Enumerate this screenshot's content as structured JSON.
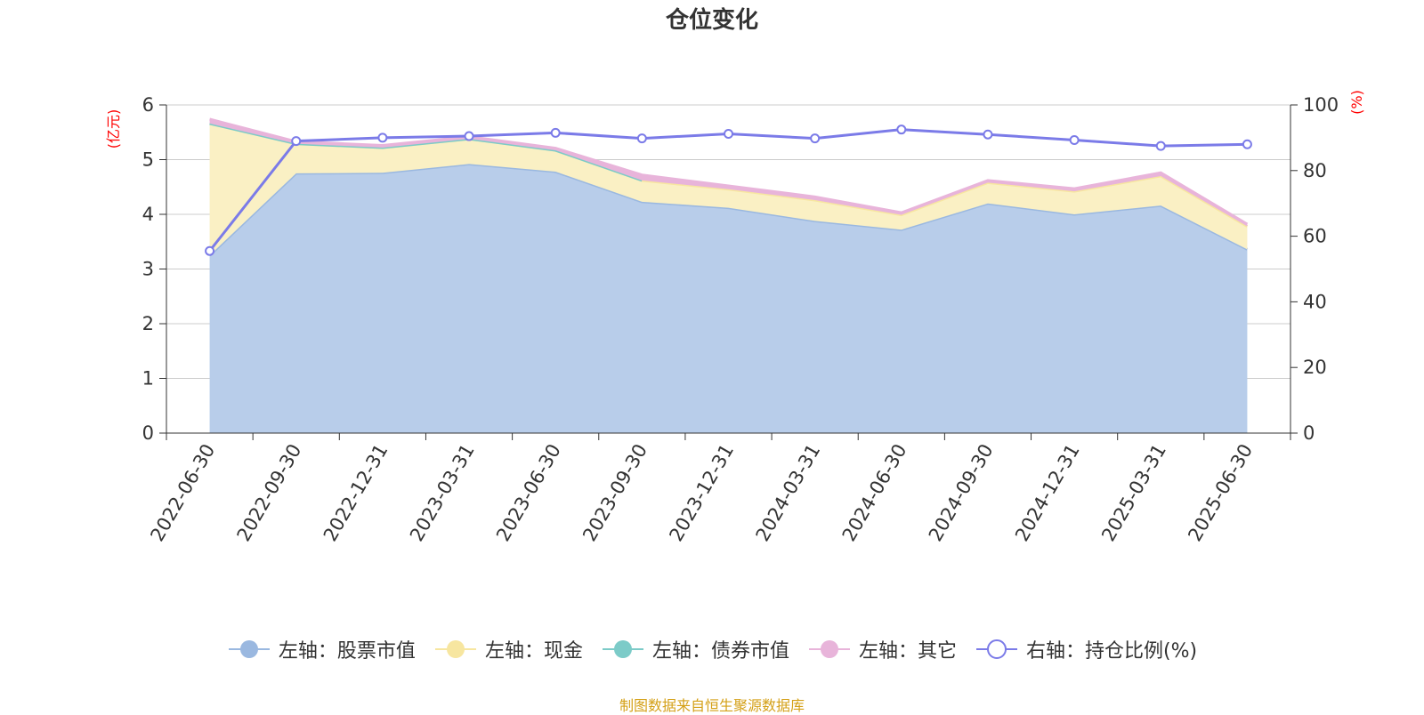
{
  "title": "仓位变化",
  "source_note": "制图数据来自恒生聚源数据库",
  "colors": {
    "stock": "#9ab8e0",
    "stock_fill": "#b8cdea",
    "cash": "#f7e6a0",
    "cash_fill": "#faf0c4",
    "bond": "#7ccbc8",
    "other": "#e8b4da",
    "ratio": "#7b7be8",
    "grid": "#cccccc",
    "unit": "#ff0000"
  },
  "chart_data": {
    "type": "area",
    "title": "仓位变化",
    "categories": [
      "2022-06-30",
      "2022-09-30",
      "2022-12-31",
      "2023-03-31",
      "2023-06-30",
      "2023-09-30",
      "2023-12-31",
      "2024-03-31",
      "2024-06-30",
      "2024-09-30",
      "2024-12-31",
      "2025-03-31",
      "2025-06-30"
    ],
    "left_axis": {
      "unit": "(亿元)",
      "ylim": [
        0,
        6
      ],
      "ticks": [
        "0",
        "1",
        "2",
        "3",
        "4",
        "5",
        "6"
      ]
    },
    "right_axis": {
      "unit": "(%)",
      "ylim": [
        0,
        100
      ],
      "ticks": [
        "0",
        "20",
        "40",
        "60",
        "80",
        "100"
      ]
    },
    "grid": true,
    "legend_position": "bottom",
    "series": [
      {
        "name": "左轴：股票市值",
        "axis": "left",
        "stacked": true,
        "values": [
          3.25,
          4.75,
          4.76,
          4.92,
          4.78,
          4.23,
          4.12,
          3.88,
          3.72,
          4.2,
          4.0,
          4.16,
          3.36
        ]
      },
      {
        "name": "左轴：现金",
        "axis": "left",
        "stacked": true,
        "values": [
          2.41,
          0.54,
          0.46,
          0.46,
          0.39,
          0.39,
          0.34,
          0.38,
          0.27,
          0.38,
          0.42,
          0.54,
          0.42
        ]
      },
      {
        "name": "左轴：债券市值",
        "axis": "left",
        "stacked": true,
        "values": [
          0,
          0,
          0,
          0,
          0,
          0,
          null,
          null,
          null,
          null,
          null,
          null,
          null
        ]
      },
      {
        "name": "左轴：其它",
        "axis": "left",
        "stacked": true,
        "values": [
          0.08,
          0.04,
          0.04,
          0.04,
          0.04,
          0.1,
          0.06,
          0.06,
          0.04,
          0.04,
          0.05,
          0.06,
          0.04
        ]
      },
      {
        "name": "右轴：持仓比例(%)",
        "axis": "right",
        "type": "line",
        "values": [
          55.5,
          89.0,
          90.0,
          90.5,
          91.5,
          89.8,
          91.2,
          89.8,
          92.5,
          91.0,
          89.3,
          87.5,
          88.0
        ]
      }
    ]
  },
  "legend": [
    {
      "key": "stock",
      "label": "左轴：股票市值",
      "symbol": "filled"
    },
    {
      "key": "cash",
      "label": "左轴：现金",
      "symbol": "filled"
    },
    {
      "key": "bond",
      "label": "左轴：债券市值",
      "symbol": "filled"
    },
    {
      "key": "other",
      "label": "左轴：其它",
      "symbol": "filled"
    },
    {
      "key": "ratio",
      "label": "右轴：持仓比例(%)",
      "symbol": "hollow"
    }
  ]
}
